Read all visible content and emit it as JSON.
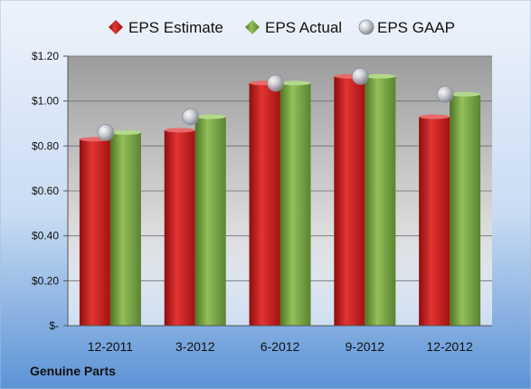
{
  "chart_data": {
    "type": "bar",
    "categories": [
      "12-2011",
      "3-2012",
      "6-2012",
      "9-2012",
      "12-2012"
    ],
    "series": [
      {
        "name": "EPS Estimate",
        "type": "bar",
        "color": "#cc1f1f",
        "values": [
          0.83,
          0.87,
          1.08,
          1.11,
          0.93
        ]
      },
      {
        "name": "EPS Actual",
        "type": "bar",
        "color": "#7aa544",
        "values": [
          0.86,
          0.93,
          1.08,
          1.11,
          1.03
        ]
      },
      {
        "name": "EPS GAAP",
        "type": "scatter",
        "color": "#b9bec6",
        "values": [
          0.86,
          0.93,
          1.08,
          1.11,
          1.03
        ]
      }
    ],
    "y_ticks": [
      0,
      0.2,
      0.4,
      0.6,
      0.8,
      1.0,
      1.2
    ],
    "y_tick_labels": [
      "$-",
      "$0.20",
      "$0.40",
      "$0.60",
      "$0.80",
      "$1.00",
      "$1.20"
    ],
    "ylim": [
      0,
      1.2
    ],
    "grid": true,
    "legend_position": "top"
  },
  "company": "Genuine Parts"
}
